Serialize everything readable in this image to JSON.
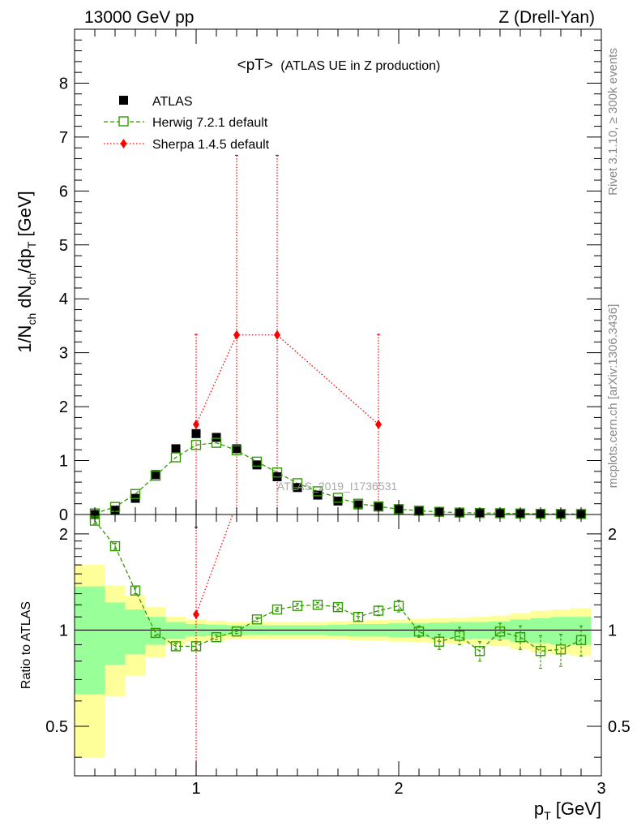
{
  "header": {
    "left": "13000 GeV pp",
    "right": "Z (Drell-Yan)"
  },
  "side_labels": {
    "rivet": "Rivet 3.1.10, ≥ 300k events",
    "mcplots": "mcplots.cern.ch [arXiv:1306.3436]"
  },
  "colors": {
    "atlas": "#000000",
    "herwig": "#339900",
    "sherpa": "#ff0000",
    "band_outer": "#ffff99",
    "band_inner": "#99ff99"
  },
  "chart_data": {
    "type": "scatter",
    "title": "<pT> (ATLAS UE in Z production)",
    "title_main": "<pT>",
    "title_sub": "(ATLAS UE in Z production)",
    "watermark": "ATLAS_2019_I1736531",
    "xlabel": "p_T [GeV]",
    "xlabel_main": "p",
    "xlabel_sub": "T",
    "xlabel_unit": " [GeV]",
    "xlim": [
      0.4,
      3.0
    ],
    "x_ticks": [
      1,
      2,
      3
    ],
    "ylabel": "1/N_ch dN_ch/dp_T [GeV]",
    "ylim_main": [
      0,
      9
    ],
    "y_ticks_main": [
      0,
      1,
      2,
      3,
      4,
      5,
      6,
      7,
      8
    ],
    "ylabel_ratio": "Ratio to ATLAS",
    "ylim_ratio": [
      0.35,
      2.3
    ],
    "y_ticks_ratio": [
      0.5,
      1,
      2
    ],
    "legend": [
      {
        "label": "ATLAS",
        "series": "atlas"
      },
      {
        "label": "Herwig 7.2.1 default",
        "series": "herwig"
      },
      {
        "label": "Sherpa 1.4.5 default",
        "series": "sherpa"
      }
    ],
    "series": [
      {
        "name": "ATLAS",
        "x": [
          0.5,
          0.6,
          0.7,
          0.8,
          0.9,
          1.0,
          1.1,
          1.2,
          1.3,
          1.4,
          1.5,
          1.6,
          1.7,
          1.8,
          1.9,
          2.0,
          2.1,
          2.2,
          2.3,
          2.4,
          2.5,
          2.6,
          2.7,
          2.8,
          2.9
        ],
        "y": [
          0.0,
          0.08,
          0.3,
          0.74,
          1.22,
          1.5,
          1.43,
          1.22,
          0.92,
          0.7,
          0.5,
          0.36,
          0.25,
          0.18,
          0.14,
          0.1,
          0.07,
          0.05,
          0.04,
          0.03,
          0.025,
          0.02,
          0.015,
          0.012,
          0.01
        ]
      },
      {
        "name": "Herwig 7.2.1 default",
        "x": [
          0.5,
          0.6,
          0.7,
          0.8,
          0.9,
          1.0,
          1.1,
          1.2,
          1.3,
          1.4,
          1.5,
          1.6,
          1.7,
          1.8,
          1.9,
          2.0,
          2.1,
          2.2,
          2.3,
          2.4,
          2.5,
          2.6,
          2.7,
          2.8,
          2.9
        ],
        "y": [
          0.02,
          0.14,
          0.38,
          0.72,
          1.06,
          1.29,
          1.33,
          1.19,
          0.98,
          0.78,
          0.58,
          0.43,
          0.31,
          0.2,
          0.15,
          0.1,
          0.07,
          0.05,
          0.035,
          0.028,
          0.024,
          0.019,
          0.013,
          0.01,
          0.009
        ],
        "ratio": [
          2.2,
          1.83,
          1.33,
          0.98,
          0.89,
          0.89,
          0.95,
          0.99,
          1.08,
          1.16,
          1.19,
          1.2,
          1.18,
          1.1,
          1.15,
          1.19,
          0.99,
          0.92,
          0.96,
          0.86,
          0.99,
          0.95,
          0.86,
          0.87,
          0.93
        ],
        "ratio_err": [
          0.05,
          0.04,
          0.03,
          0.02,
          0.02,
          0.02,
          0.015,
          0.015,
          0.015,
          0.015,
          0.02,
          0.02,
          0.025,
          0.03,
          0.04,
          0.05,
          0.04,
          0.05,
          0.06,
          0.06,
          0.06,
          0.08,
          0.1,
          0.1,
          0.1
        ]
      },
      {
        "name": "Sherpa 1.4.5 default",
        "x": [
          1.0,
          1.2,
          1.4,
          1.9
        ],
        "y": [
          1.67,
          3.33,
          3.33,
          1.67
        ],
        "err_low": [
          1.67,
          3.33,
          3.33,
          1.67
        ],
        "err_high": [
          1.67,
          3.33,
          3.33,
          1.67
        ],
        "ratio": [
          1.12
        ],
        "ratio_x": [
          1.0
        ]
      }
    ],
    "bands": {
      "edges": [
        0.4,
        0.55,
        0.65,
        0.75,
        0.85,
        0.95,
        1.05,
        1.15,
        1.25,
        1.35,
        1.45,
        1.55,
        1.65,
        1.75,
        1.85,
        1.95,
        2.05,
        2.15,
        2.25,
        2.35,
        2.45,
        2.55,
        2.65,
        2.75,
        2.85,
        2.95
      ],
      "outer": [
        0.6,
        0.38,
        0.28,
        0.18,
        0.1,
        0.08,
        0.07,
        0.06,
        0.06,
        0.06,
        0.06,
        0.06,
        0.065,
        0.07,
        0.075,
        0.08,
        0.085,
        0.09,
        0.095,
        0.1,
        0.11,
        0.13,
        0.15,
        0.16,
        0.17
      ],
      "inner": [
        0.37,
        0.22,
        0.16,
        0.1,
        0.06,
        0.045,
        0.04,
        0.035,
        0.035,
        0.035,
        0.035,
        0.035,
        0.04,
        0.045,
        0.045,
        0.05,
        0.05,
        0.055,
        0.06,
        0.06,
        0.065,
        0.08,
        0.09,
        0.1,
        0.1
      ]
    }
  }
}
